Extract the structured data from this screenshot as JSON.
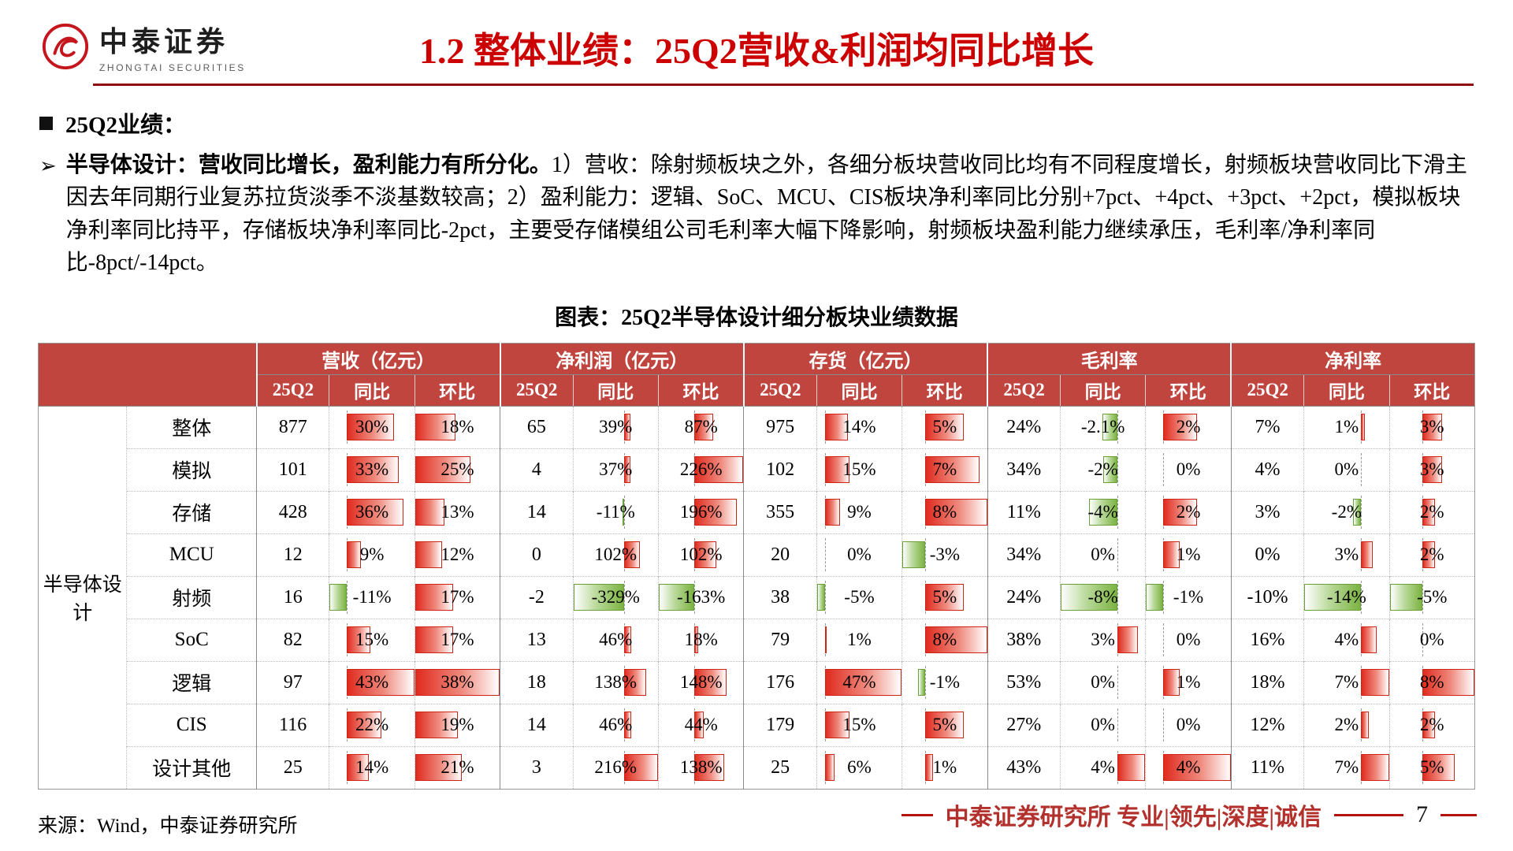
{
  "header": {
    "logo": {
      "name": "中泰证券",
      "subtitle": "ZHONGTAI SECURITIES"
    },
    "title": "1.2 整体业绩：25Q2营收&利润均同比增长"
  },
  "bullets": {
    "section_title": "25Q2业绩：",
    "arrow": "➢",
    "lead": "半导体设计：营收同比增长，盈利能力有所分化。",
    "body": "1）营收：除射频板块之外，各细分板块营收同比均有不同程度增长，射频板块营收同比下滑主因去年同期行业复苏拉货淡季不淡基数较高；2）盈利能力：逻辑、SoC、MCU、CIS板块净利率同比分别+7pct、+4pct、+3pct、+2pct，模拟板块净利率同比持平，存储板块净利率同比-2pct，主要受存储模组公司毛利率大幅下降影响，射频板块盈利能力继续承压，毛利率/净利率同比-8pct/-14pct。"
  },
  "chart_data": {
    "type": "table",
    "title": "图表：25Q2半导体设计细分板块业绩数据",
    "row_group_label": "半导体设计",
    "column_groups": [
      "营收（亿元）",
      "净利润（亿元）",
      "存货（亿元）",
      "毛利率",
      "净利率"
    ],
    "sub_columns": [
      "25Q2",
      "同比",
      "环比"
    ],
    "bar_columns": [
      1,
      2,
      4,
      5,
      7,
      8,
      10,
      11,
      13,
      14
    ],
    "bar_colors": {
      "positive": "#e02b1f",
      "negative": "#7cb342"
    },
    "rows": [
      {
        "label": "整体",
        "cells": [
          "877",
          "30%",
          "18%",
          "65",
          "39%",
          "87%",
          "975",
          "14%",
          "5%",
          "24%",
          "-2.1%",
          "2%",
          "7%",
          "1%",
          "3%"
        ]
      },
      {
        "label": "模拟",
        "cells": [
          "101",
          "33%",
          "25%",
          "4",
          "37%",
          "226%",
          "102",
          "15%",
          "7%",
          "34%",
          "-2%",
          "0%",
          "4%",
          "0%",
          "3%"
        ]
      },
      {
        "label": "存储",
        "cells": [
          "428",
          "36%",
          "13%",
          "14",
          "-11%",
          "196%",
          "355",
          "9%",
          "8%",
          "11%",
          "-4%",
          "2%",
          "3%",
          "-2%",
          "2%"
        ]
      },
      {
        "label": "MCU",
        "cells": [
          "12",
          "9%",
          "12%",
          "0",
          "102%",
          "102%",
          "20",
          "0%",
          "-3%",
          "34%",
          "0%",
          "1%",
          "0%",
          "3%",
          "2%"
        ]
      },
      {
        "label": "射频",
        "cells": [
          "16",
          "-11%",
          "17%",
          "-2",
          "-329%",
          "-163%",
          "38",
          "-5%",
          "5%",
          "24%",
          "-8%",
          "-1%",
          "-10%",
          "-14%",
          "-5%"
        ]
      },
      {
        "label": "SoC",
        "cells": [
          "82",
          "15%",
          "17%",
          "13",
          "46%",
          "18%",
          "79",
          "1%",
          "8%",
          "38%",
          "3%",
          "0%",
          "16%",
          "4%",
          "0%"
        ]
      },
      {
        "label": "逻辑",
        "cells": [
          "97",
          "43%",
          "38%",
          "18",
          "138%",
          "148%",
          "176",
          "47%",
          "-1%",
          "53%",
          "0%",
          "1%",
          "18%",
          "7%",
          "8%"
        ]
      },
      {
        "label": "CIS",
        "cells": [
          "116",
          "22%",
          "19%",
          "14",
          "46%",
          "44%",
          "179",
          "15%",
          "5%",
          "27%",
          "0%",
          "0%",
          "12%",
          "2%",
          "2%"
        ]
      },
      {
        "label": "设计其他",
        "cells": [
          "25",
          "14%",
          "21%",
          "3",
          "216%",
          "138%",
          "25",
          "6%",
          "1%",
          "43%",
          "4%",
          "4%",
          "11%",
          "7%",
          "5%"
        ]
      }
    ]
  },
  "footer": {
    "source": "来源：Wind，中泰证券研究所",
    "brand": "中泰证券研究所 专业|领先|深度|诚信",
    "page": "7"
  }
}
